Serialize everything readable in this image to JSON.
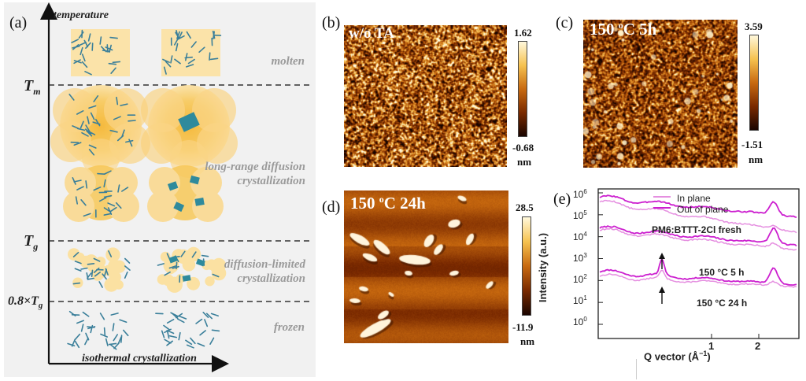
{
  "panel_a": {
    "label": "(a)",
    "y_axis_label": "temperature",
    "x_axis_label": "isothermal crystallization",
    "levels": [
      {
        "name": "Tm",
        "sub": "m"
      },
      {
        "name": "Tg",
        "sub": "g"
      },
      {
        "name": "0.8×Tg",
        "sub": "g"
      }
    ],
    "t_letter": "T",
    "factor_prefix": "0.8×T",
    "states": {
      "molten": "molten",
      "long_range_1": "long-range diffusion",
      "long_range_2": "crystallization",
      "diffusion_limited_1": "diffusion-limited",
      "diffusion_limited_2": "crystallization",
      "frozen": "frozen"
    }
  },
  "panel_b": {
    "label": "(b)",
    "title": "w/o TA",
    "cbar_max": "1.62",
    "cbar_min": "-0.68",
    "unit": "nm"
  },
  "panel_c": {
    "label": "(c)",
    "title": "150 °C 5h",
    "title_main": "150 ",
    "title_sup": "o",
    "title_tail": "C 5h",
    "cbar_max": "3.59",
    "cbar_min": "-1.51",
    "unit": "nm"
  },
  "panel_d": {
    "label": "(d)",
    "title_main": "150 ",
    "title_sup": "o",
    "title_tail": "C 24h",
    "cbar_max": "28.5",
    "cbar_min": "-11.9",
    "unit": "nm"
  },
  "panel_e": {
    "label": "(e)",
    "legend": [
      "In plane",
      "Out of plane"
    ],
    "annotations": [
      "PM6:BTTT-2Cl fresh",
      "150 °C 5 h",
      "150 °C 24 h"
    ],
    "ylabel": "Intensity (a.u.)",
    "xlabel": "Q vector (Å",
    "xlabel_sup": "−1",
    "xlabel_tail": ")",
    "yticks": [
      {
        "base": "10",
        "exp": "6"
      },
      {
        "base": "10",
        "exp": "5"
      },
      {
        "base": "10",
        "exp": "4"
      },
      {
        "base": "10",
        "exp": "3"
      },
      {
        "base": "10",
        "exp": "2"
      },
      {
        "base": "10",
        "exp": "1"
      },
      {
        "base": "10",
        "exp": "0"
      }
    ],
    "xticks": [
      "1",
      "2"
    ],
    "colors": {
      "in_plane": "#e58fe0",
      "out_of_plane": "#cc1fcf"
    }
  }
}
